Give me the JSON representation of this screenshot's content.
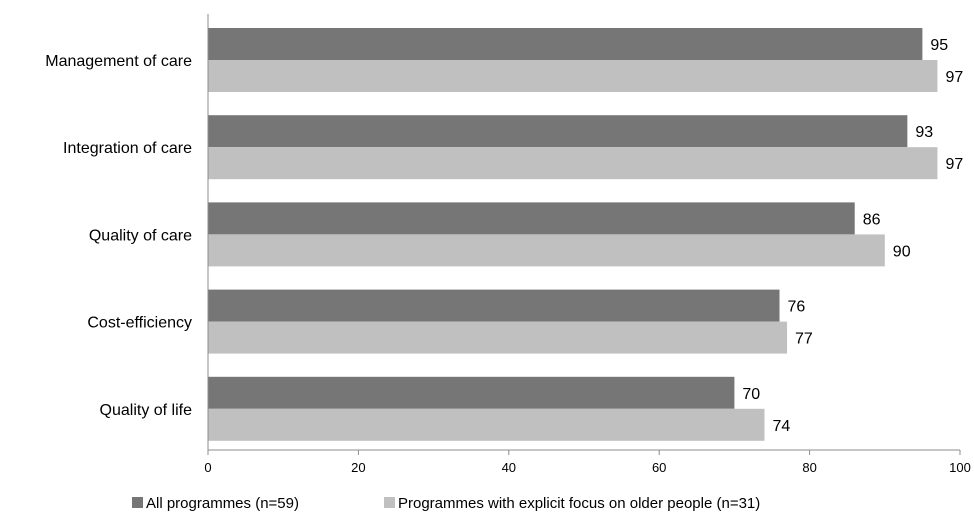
{
  "chart_data": {
    "type": "bar",
    "orientation": "horizontal",
    "title": "",
    "xlabel": "",
    "ylabel": "",
    "categories": [
      "Management of care",
      "Integration of care",
      "Quality of care",
      "Cost-efficiency",
      "Quality of life"
    ],
    "series": [
      {
        "name": "All programmes (n=59)",
        "color": "#767676",
        "values": [
          95,
          93,
          86,
          76,
          70
        ]
      },
      {
        "name": "Programmes with explicit focus on older people (n=31)",
        "color": "#c0c0c0",
        "values": [
          97,
          97,
          90,
          77,
          74
        ]
      }
    ],
    "xlim": [
      0,
      100
    ],
    "xticks": [
      0,
      20,
      40,
      60,
      80,
      100
    ],
    "grid": false,
    "legend_position": "bottom",
    "data_labels": true
  }
}
